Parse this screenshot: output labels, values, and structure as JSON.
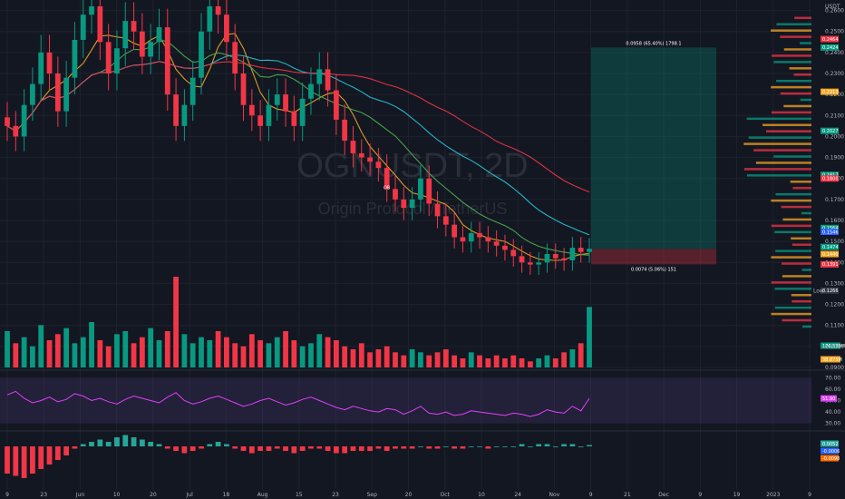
{
  "chart_data": {
    "type": "candlestick",
    "symbol": "OGNUSDT, 2D",
    "name": "Origin Protocol / TetherUS",
    "currency_label": "USDT",
    "marker_label": "OB",
    "y_ticks": [
      "0.2600",
      "0.2500",
      "0.2400",
      "0.2300",
      "0.2200",
      "0.2100",
      "0.2000",
      "0.1900",
      "0.1800",
      "0.1700",
      "0.1600",
      "0.1500",
      "0.1400",
      "0.1300",
      "0.1200",
      "0.1100",
      "0.1000",
      "0.0900"
    ],
    "ylim": [
      0.09,
      0.265
    ],
    "x_ticks": [
      "9",
      "23",
      "Jun",
      "10",
      "20",
      "Jul",
      "18",
      "Aug",
      "15",
      "23",
      "Sep",
      "20",
      "Oct",
      "10",
      "24",
      "Nov",
      "9",
      "21",
      "Dec",
      "9",
      "19",
      "2023",
      "9"
    ],
    "price_badges": [
      {
        "text": "0.2464",
        "value": 0.2464,
        "color": "#f23645"
      },
      {
        "text": "0.2424",
        "value": 0.2424,
        "color": "#089981"
      },
      {
        "text": "0.2213",
        "value": 0.2213,
        "color": "#f5a623"
      },
      {
        "text": "0.2027",
        "value": 0.2027,
        "color": "#089981"
      },
      {
        "text": "0.1817",
        "value": 0.1817,
        "color": "#089981"
      },
      {
        "text": "0.1800",
        "value": 0.18,
        "color": "#f23645"
      },
      {
        "text": "0.1564",
        "value": 0.1564,
        "color": "#089981"
      },
      {
        "text": "0.1546",
        "value": 0.1546,
        "color": "#2962ff"
      },
      {
        "text": "0.1474",
        "value": 0.1474,
        "color": "#089981"
      },
      {
        "text": "0.1440",
        "value": 0.144,
        "color": "#f5a623"
      },
      {
        "text": "0.1391",
        "value": 0.1391,
        "color": "#f23645"
      },
      {
        "text": "0.1266",
        "value": 0.1266,
        "color": "#363a45"
      }
    ],
    "low_label": "Low",
    "position": {
      "entry": 0.1465,
      "target": 0.2424,
      "stop": 0.1391,
      "target_label": "0.0958 (65.40%) 1798.1",
      "stop_label": "0.0074 (5.06%) 151"
    },
    "volume_badges": [
      "176.539M",
      "38.875M"
    ],
    "rsi_ticks": [
      "70.00",
      "60.00",
      "50.00",
      "40.00",
      "30.00"
    ],
    "rsi_value": "51.90",
    "macd_badges": [
      "0.0052",
      "-0.0006",
      "-0.0098"
    ],
    "closes": [
      0.205,
      0.2,
      0.215,
      0.225,
      0.24,
      0.23,
      0.212,
      0.228,
      0.246,
      0.258,
      0.262,
      0.245,
      0.23,
      0.242,
      0.255,
      0.25,
      0.238,
      0.245,
      0.252,
      0.22,
      0.205,
      0.215,
      0.228,
      0.25,
      0.262,
      0.258,
      0.245,
      0.23,
      0.215,
      0.21,
      0.205,
      0.215,
      0.22,
      0.212,
      0.205,
      0.218,
      0.225,
      0.232,
      0.222,
      0.208,
      0.198,
      0.192,
      0.19,
      0.188,
      0.185,
      0.175,
      0.17,
      0.166,
      0.17,
      0.18,
      0.168,
      0.162,
      0.158,
      0.152,
      0.15,
      0.154,
      0.152,
      0.15,
      0.148,
      0.146,
      0.143,
      0.14,
      0.139,
      0.14,
      0.144,
      0.142,
      0.141,
      0.147,
      0.145,
      0.1465
    ],
    "volumes": [
      12,
      8,
      10,
      7,
      14,
      9,
      11,
      13,
      8,
      10,
      15,
      9,
      7,
      11,
      12,
      8,
      10,
      13,
      9,
      12,
      30,
      11,
      8,
      10,
      9,
      12,
      10,
      8,
      7,
      11,
      9,
      8,
      10,
      12,
      9,
      7,
      8,
      11,
      10,
      9,
      7,
      6,
      8,
      5,
      6,
      7,
      5,
      4,
      6,
      5,
      4,
      5,
      6,
      4,
      3,
      5,
      4,
      3,
      4,
      3,
      4,
      3,
      2,
      3,
      4,
      3,
      5,
      6,
      8,
      20
    ],
    "rsi": [
      55,
      58,
      52,
      48,
      50,
      53,
      49,
      51,
      56,
      54,
      50,
      52,
      49,
      47,
      51,
      54,
      52,
      50,
      48,
      53,
      57,
      50,
      47,
      49,
      52,
      54,
      51,
      48,
      45,
      47,
      50,
      52,
      49,
      46,
      48,
      51,
      53,
      50,
      47,
      44,
      42,
      45,
      43,
      41,
      40,
      43,
      42,
      38,
      41,
      45,
      39,
      38,
      40,
      37,
      38,
      41,
      40,
      39,
      38,
      37,
      39,
      38,
      36,
      38,
      42,
      40,
      39,
      45,
      41,
      51.9
    ],
    "macd_hist": [
      -0.012,
      -0.013,
      -0.014,
      -0.012,
      -0.01,
      -0.008,
      -0.006,
      -0.004,
      -0.001,
      0.001,
      0.002,
      0.003,
      0.002,
      0.004,
      0.005,
      0.004,
      0.003,
      0.002,
      0.001,
      -0.001,
      -0.002,
      -0.003,
      -0.002,
      -0.001,
      0.001,
      0.002,
      0.001,
      -0.001,
      -0.002,
      -0.003,
      -0.002,
      -0.002,
      -0.001,
      -0.002,
      -0.003,
      -0.002,
      -0.001,
      -0.001,
      -0.002,
      -0.003,
      -0.003,
      -0.002,
      -0.002,
      -0.002,
      -0.001,
      -0.002,
      -0.001,
      -0.001,
      -0.001,
      0.0,
      -0.001,
      -0.001,
      0.0,
      -0.001,
      -0.001,
      0.0,
      0.0,
      -0.001,
      0.0,
      0.0,
      0.0,
      0.001,
      0.0,
      0.001,
      0.001,
      0.0,
      0.001,
      0.001,
      0.0,
      0.0006
    ]
  }
}
